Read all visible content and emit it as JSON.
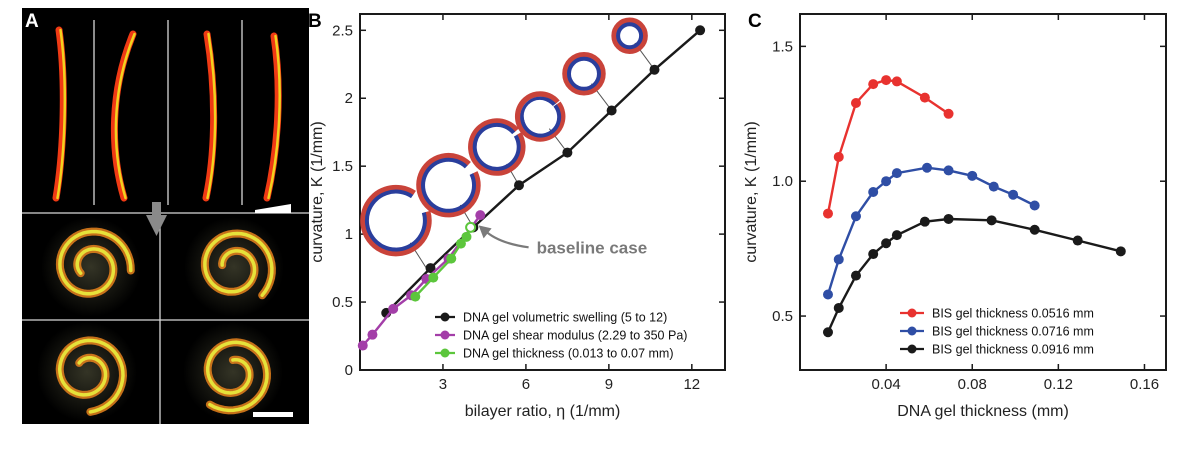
{
  "panels": {
    "a_label": "A",
    "b_label": "B",
    "c_label": "C"
  },
  "colors": {
    "black": "#1a1a1a",
    "purple": "#a33ea8",
    "green": "#5cc63c",
    "red": "#e8322f",
    "blue": "#2f4ea5",
    "gray": "#8a8a8a"
  },
  "micrographs": {
    "top_row": [
      {
        "shape": "strip",
        "curve": "slight-right"
      },
      {
        "shape": "strip",
        "curve": "left"
      },
      {
        "shape": "strip",
        "curve": "slight-left"
      },
      {
        "shape": "strip",
        "curve": "slight-right"
      }
    ],
    "bottom_row": [
      {
        "shape": "spiral"
      },
      {
        "shape": "spiral"
      },
      {
        "shape": "spiral"
      },
      {
        "shape": "spiral"
      }
    ]
  },
  "chart_data": [
    {
      "id": "B",
      "type": "line",
      "title": "",
      "xlabel": "bilayer ratio, η (1/mm)",
      "ylabel": "curvature, K (1/mm)",
      "xlim": [
        0,
        13.2
      ],
      "ylim": [
        0,
        2.62
      ],
      "xticks": [
        3,
        6,
        9,
        12
      ],
      "xtick_labels": [
        "3",
        "6",
        "9",
        "12"
      ],
      "yticks": [
        0,
        0.5,
        1,
        1.5,
        2,
        2.5
      ],
      "ytick_labels": [
        "0",
        "0.5",
        "1",
        "1.5",
        "2",
        "2.5"
      ],
      "legend_position": "bottom-right",
      "series": [
        {
          "name": "DNA gel volumetric swelling (5 to 12)",
          "color": "#1a1a1a",
          "x": [
            0.95,
            2.55,
            4.1,
            5.75,
            7.5,
            9.1,
            10.65,
            12.3
          ],
          "y": [
            0.42,
            0.75,
            1.05,
            1.36,
            1.6,
            1.91,
            2.21,
            2.5
          ]
        },
        {
          "name": "DNA gel shear modulus (2.29 to 350 Pa)",
          "color": "#a33ea8",
          "x": [
            0.1,
            0.45,
            1.2,
            1.85,
            2.4,
            3.2,
            4.35
          ],
          "y": [
            0.18,
            0.26,
            0.45,
            0.55,
            0.67,
            0.82,
            1.14
          ]
        },
        {
          "name": "DNA gel thickness (0.013 to 0.07 mm)",
          "color": "#5cc63c",
          "x": [
            2.0,
            2.65,
            3.3,
            3.65,
            3.85,
            4.0
          ],
          "y": [
            0.54,
            0.68,
            0.82,
            0.93,
            0.98,
            1.05
          ]
        }
      ],
      "annotation": "baseline case",
      "baseline_point": {
        "x": 4.0,
        "y": 1.05
      },
      "ring_insets": [
        {
          "x": 1.3,
          "y": 1.1,
          "ref_x": 2.4,
          "ref_y": 0.75,
          "gap": 0.7
        },
        {
          "x": 3.2,
          "y": 1.36,
          "ref_x": 4.1,
          "ref_y": 1.05,
          "gap": 0.35
        },
        {
          "x": 4.95,
          "y": 1.64,
          "ref_x": 5.75,
          "ref_y": 1.36,
          "gap": 0.15
        },
        {
          "x": 6.5,
          "y": 1.87,
          "ref_x": 7.5,
          "ref_y": 1.6,
          "gap": 0.05
        },
        {
          "x": 8.1,
          "y": 2.18,
          "ref_x": 9.1,
          "ref_y": 1.91,
          "gap": 0.0
        },
        {
          "x": 9.75,
          "y": 2.46,
          "ref_x": 10.65,
          "ref_y": 2.21,
          "gap": 0.0
        }
      ]
    },
    {
      "id": "C",
      "type": "line",
      "title": "",
      "xlabel": "DNA gel thickness (mm)",
      "ylabel": "curvature, K (1/mm)",
      "xlim": [
        0,
        0.17
      ],
      "ylim": [
        0.3,
        1.62
      ],
      "xticks": [
        0.04,
        0.08,
        0.12,
        0.16
      ],
      "xtick_labels": [
        "0.04",
        "0.08",
        "0.12",
        "0.16"
      ],
      "yticks": [
        0.5,
        1.0,
        1.5
      ],
      "ytick_labels": [
        "0.5",
        "1.0",
        "1.5"
      ],
      "legend_position": "bottom-right",
      "series": [
        {
          "name": "BIS gel thickness 0.0516 mm",
          "color": "#e8322f",
          "x": [
            0.013,
            0.018,
            0.026,
            0.034,
            0.04,
            0.045,
            0.058,
            0.069
          ],
          "y": [
            0.88,
            1.09,
            1.29,
            1.36,
            1.375,
            1.37,
            1.31,
            1.25
          ]
        },
        {
          "name": "BIS gel thickness 0.0716 mm",
          "color": "#2f4ea5",
          "x": [
            0.013,
            0.018,
            0.026,
            0.034,
            0.04,
            0.045,
            0.059,
            0.069,
            0.08,
            0.09,
            0.099,
            0.109
          ],
          "y": [
            0.58,
            0.71,
            0.87,
            0.96,
            1.0,
            1.03,
            1.05,
            1.04,
            1.02,
            0.98,
            0.95,
            0.91
          ]
        },
        {
          "name": "BIS gel thickness 0.0916 mm",
          "color": "#1a1a1a",
          "x": [
            0.013,
            0.018,
            0.026,
            0.034,
            0.04,
            0.045,
            0.058,
            0.069,
            0.089,
            0.109,
            0.129,
            0.149
          ],
          "y": [
            0.44,
            0.53,
            0.65,
            0.73,
            0.77,
            0.8,
            0.85,
            0.86,
            0.855,
            0.82,
            0.78,
            0.74
          ]
        }
      ]
    }
  ]
}
